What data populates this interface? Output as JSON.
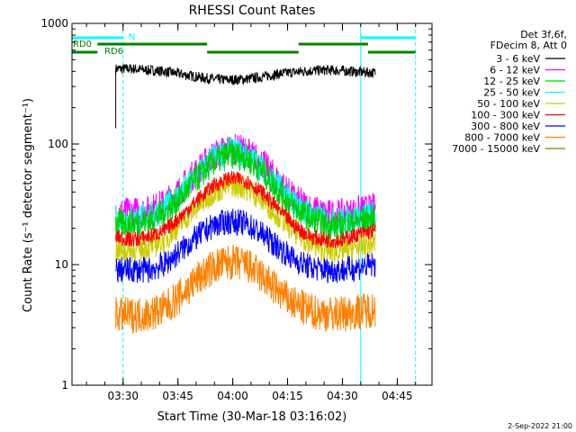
{
  "chart_data": {
    "type": "line",
    "title": "RHESSI Count Rates",
    "xlabel": "Start Time (30-Mar-18 03:16:02)",
    "ylabel": "Count Rate (s⁻¹ detector segment⁻¹)",
    "yscale": "log",
    "ylim": [
      1,
      1000
    ],
    "xlim": [
      "03:16:02",
      "04:54:30"
    ],
    "x_ticks": [
      "03:30",
      "03:45",
      "04:00",
      "04:15",
      "04:30",
      "04:45"
    ],
    "y_ticks": [
      "1",
      "10",
      "100",
      "1000"
    ],
    "grid": false,
    "legend_position": "top-right",
    "legend_header": [
      "Det 3f,6f,",
      "FDecim 8, Att 0"
    ],
    "annotations": {
      "n_label": "N",
      "rd0_label": "RD0",
      "rd6_label": "RD6"
    },
    "night_intervals": [
      [
        "03:16:02",
        "03:30:00"
      ],
      [
        "04:35:00",
        "04:50:00"
      ]
    ],
    "rd_bars": {
      "RD0_start": "03:16:02",
      "RD0_end": "03:23:00",
      "RD6": [
        [
          "03:23:00",
          "03:53:00"
        ],
        [
          "04:18:00",
          "04:37:00"
        ]
      ],
      "RD6_low": [
        [
          "03:53:00",
          "04:18:00"
        ],
        [
          "04:37:00",
          "04:50:00"
        ]
      ]
    },
    "data_start": "03:28:00",
    "data_end": "04:39:00",
    "series": [
      {
        "name": "3 - 6 keV",
        "color": "#000000",
        "values": [
          420,
          420,
          410,
          400,
          380,
          360,
          345,
          340,
          345,
          360,
          380,
          395,
          405,
          410,
          405,
          395,
          390
        ]
      },
      {
        "name": "6 - 12 keV",
        "color": "#ff00ff",
        "values": [
          27,
          27,
          28,
          32,
          42,
          60,
          80,
          92,
          88,
          70,
          50,
          35,
          29,
          26,
          26,
          28,
          29
        ]
      },
      {
        "name": "12 - 25 keV",
        "color": "#00cc00",
        "values": [
          22,
          22,
          23,
          27,
          36,
          52,
          70,
          82,
          78,
          60,
          42,
          30,
          24,
          21,
          21,
          23,
          24
        ]
      },
      {
        "name": "25 - 50 keV",
        "color": "#00ffff",
        "values": [
          24,
          24,
          25,
          29,
          38,
          55,
          75,
          88,
          82,
          64,
          45,
          32,
          26,
          23,
          23,
          25,
          26
        ]
      },
      {
        "name": "50 - 100 keV",
        "color": "#cccc00",
        "values": [
          13,
          13,
          14,
          16,
          22,
          30,
          40,
          46,
          44,
          35,
          26,
          19,
          15,
          13,
          13,
          14,
          15
        ]
      },
      {
        "name": "100 - 300 keV",
        "color": "#ff0000",
        "values": [
          17,
          16,
          17,
          19,
          25,
          34,
          45,
          52,
          50,
          40,
          29,
          21,
          17,
          16,
          16,
          18,
          19
        ]
      },
      {
        "name": "300 - 800 keV",
        "color": "#0000ff",
        "values": [
          9,
          9,
          9,
          10,
          13,
          17,
          21,
          23,
          22,
          18,
          14,
          11,
          9.5,
          9,
          9,
          9.5,
          10
        ]
      },
      {
        "name": "800 - 7000 keV",
        "color": "#ff8000",
        "values": [
          3.8,
          3.8,
          3.9,
          4.3,
          5.5,
          7.5,
          9.5,
          10.5,
          10,
          8,
          6,
          4.7,
          4.1,
          3.9,
          3.9,
          4.1,
          4.3
        ]
      },
      {
        "name": "7000 - 15000 keV",
        "color": "#808000",
        "values": [
          null,
          null,
          null,
          null,
          null,
          null,
          null,
          null,
          null,
          null,
          null,
          null,
          null,
          null,
          null,
          null,
          null
        ]
      }
    ],
    "series_x": [
      "03:28:00",
      "03:32:26",
      "03:36:52",
      "03:41:18",
      "03:45:45",
      "03:50:11",
      "03:54:37",
      "03:59:03",
      "04:03:30",
      "04:07:56",
      "04:12:22",
      "04:16:48",
      "04:21:15",
      "04:25:41",
      "04:30:07",
      "04:34:33",
      "04:39:00"
    ]
  },
  "footer": {
    "date_stamp": "2-Sep-2022 21:00"
  },
  "colors": {
    "night": "#00ffff",
    "rd": "#008000",
    "axis": "#000000"
  }
}
